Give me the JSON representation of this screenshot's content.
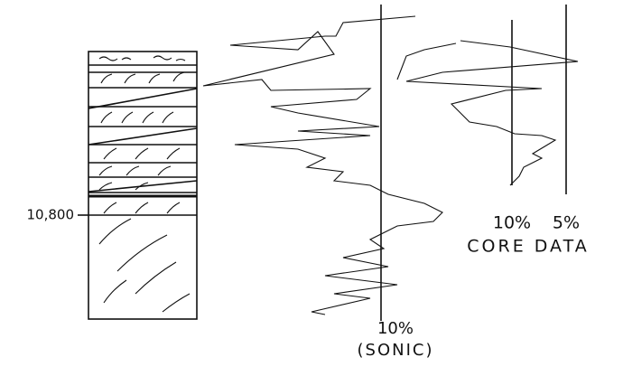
{
  "depth_label": "10,800",
  "sonic": {
    "scale": "10%",
    "label": "(SONIC)"
  },
  "core": {
    "scale_left": "10%",
    "scale_right": "5%",
    "label": "CORE DATA"
  }
}
